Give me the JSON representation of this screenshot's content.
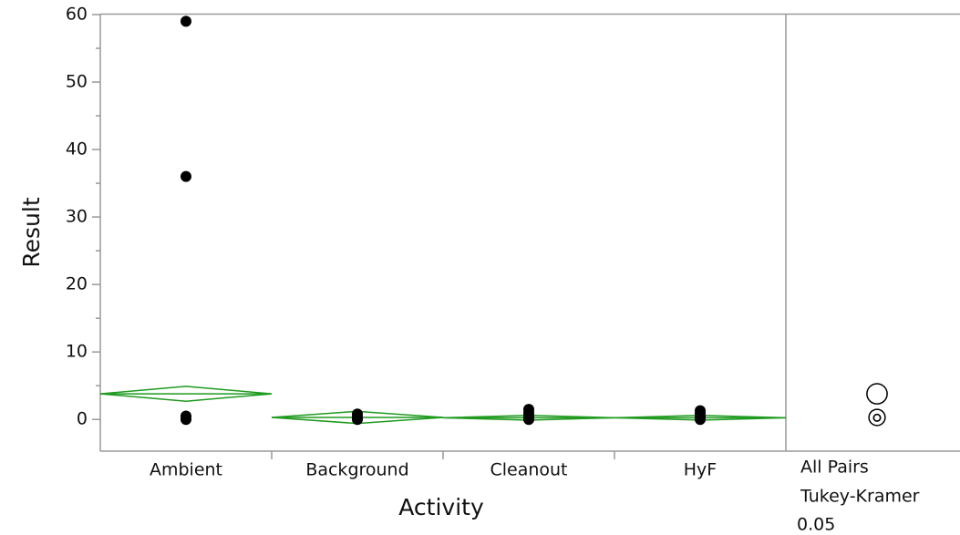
{
  "chart_data": {
    "type": "oneway",
    "x_label": "Activity",
    "y_label": "Result",
    "categories": [
      "Ambient",
      "Background",
      "Cleanout",
      "HyF"
    ],
    "groups": [
      {
        "points": [
          59,
          36,
          0.5,
          0.2,
          0
        ],
        "mean": 3.8,
        "upper": 4.9,
        "lower": 2.7
      },
      {
        "points": [
          0.8,
          0.4,
          0.1,
          0
        ],
        "mean": 0.3,
        "upper": 1.2,
        "lower": -0.6
      },
      {
        "points": [
          1.5,
          1,
          0.6,
          0.3,
          0.1,
          0
        ],
        "mean": 0.25,
        "upper": 0.6,
        "lower": -0.1
      },
      {
        "points": [
          1.3,
          0.9,
          0.5,
          0.2,
          0
        ],
        "mean": 0.25,
        "upper": 0.6,
        "lower": -0.1
      }
    ],
    "point_color": "#000000",
    "diamond_color": "#1f9a1f",
    "ylim": [
      -4.7,
      60
    ],
    "yticks": [
      0,
      10,
      20,
      30,
      40,
      50,
      60
    ],
    "yminorticks": [
      5,
      15,
      25,
      35,
      45,
      55
    ],
    "comparison": {
      "method_lines": [
        "All Pairs",
        "Tukey-Kramer"
      ],
      "alpha": 0.05,
      "circles": [
        {
          "center": 3.8,
          "radius": 1.5
        },
        {
          "center": 0.3,
          "radius": 1.2
        },
        {
          "center": 0.25,
          "radius": 0.5
        },
        {
          "center": 0.25,
          "radius": 0.5
        }
      ]
    }
  }
}
